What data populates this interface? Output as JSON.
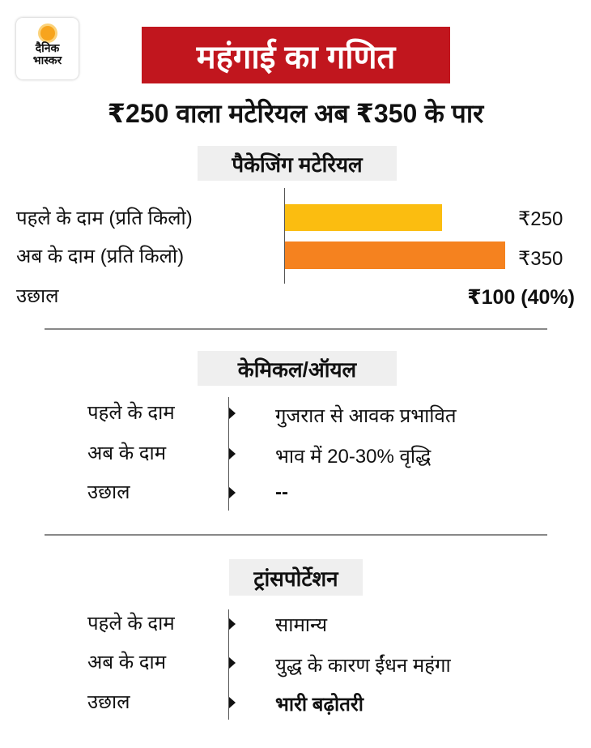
{
  "logo": {
    "line1": "दैनिक",
    "line2": "भास्कर"
  },
  "title": "महंगाई का गणित",
  "subtitle": "₹250 वाला मटेरियल अब ₹350 के पार",
  "colors": {
    "banner": "#c1161e",
    "before_bar": "#fbbd10",
    "after_bar": "#f5821f"
  },
  "chart_data": {
    "type": "bar",
    "title": "पैकेजिंग मटेरियल",
    "categories": [
      "पहले के दाम (प्रति किलो)",
      "अब के दाम (प्रति किलो)"
    ],
    "values": [
      250,
      350
    ],
    "value_labels": [
      "₹250",
      "₹350"
    ],
    "xlim": [
      0,
      380
    ],
    "rise_label": "उछाल",
    "rise_value": "₹100 (40%)"
  },
  "sections": [
    {
      "title": "केमिकल/ऑयल",
      "rows": [
        {
          "label": "पहले के दाम",
          "value": "गुजरात से आवक प्रभावित"
        },
        {
          "label": "अब के दाम",
          "value": "भाव में 20-30% वृद्धि"
        },
        {
          "label": "उछाल",
          "value": "--"
        }
      ]
    },
    {
      "title": "ट्रांसपोर्टेशन",
      "rows": [
        {
          "label": "पहले के दाम",
          "value": "सामान्य"
        },
        {
          "label": "अब के दाम",
          "value": "युद्ध के कारण ईंधन महंगा"
        },
        {
          "label": "उछाल",
          "value": "भारी बढ़ोतरी"
        }
      ]
    }
  ]
}
